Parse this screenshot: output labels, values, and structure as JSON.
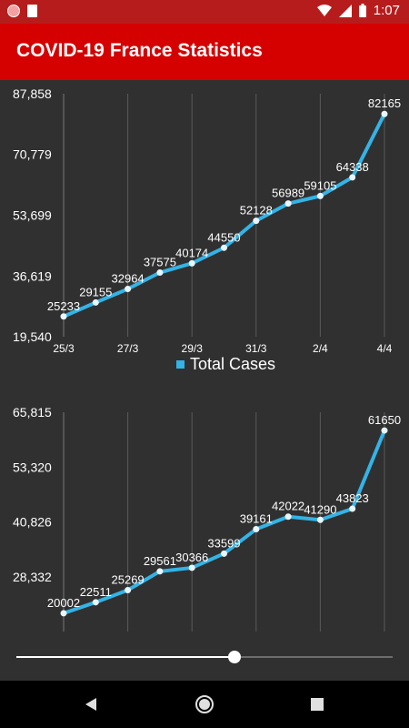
{
  "status": {
    "time": "1:07"
  },
  "app": {
    "title": "COVID-19 France Statistics"
  },
  "colors": {
    "line": "#34b3e6",
    "appbar": "#d50000",
    "background": "#303030"
  },
  "chart_data": [
    {
      "type": "line",
      "title": "",
      "x": [
        "25/3",
        "26/3",
        "27/3",
        "28/3",
        "29/3",
        "30/3",
        "31/3",
        "1/4",
        "2/4",
        "3/4",
        "4/4"
      ],
      "x_tick_labels": [
        "25/3",
        "27/3",
        "29/3",
        "31/3",
        "2/4",
        "4/4"
      ],
      "series": [
        {
          "name": "Total Cases",
          "values": [
            25233,
            29155,
            32964,
            37575,
            40174,
            44550,
            52128,
            56989,
            59105,
            64338,
            82165
          ]
        }
      ],
      "y_tick_labels": [
        "87,858",
        "70,779",
        "53,699",
        "36,619",
        "19,540"
      ],
      "ylim": [
        19540,
        87858
      ],
      "legend": "bottom",
      "grid": "vertical"
    },
    {
      "type": "line",
      "title": "",
      "x": [
        "25/3",
        "26/3",
        "27/3",
        "28/3",
        "29/3",
        "30/3",
        "31/3",
        "1/4",
        "2/4",
        "3/4",
        "4/4"
      ],
      "series": [
        {
          "values": [
            20002,
            22511,
            25269,
            29561,
            30366,
            33599,
            39161,
            42022,
            41290,
            43823,
            61650
          ]
        }
      ],
      "y_tick_labels": [
        "65,815",
        "53,320",
        "40,826",
        "28,332"
      ],
      "ylim": [
        15838,
        65815
      ],
      "grid": "vertical"
    }
  ],
  "slider": {
    "value": 0.58
  }
}
